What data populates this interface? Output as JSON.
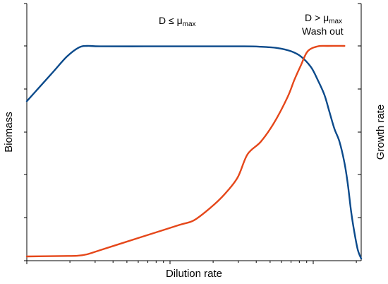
{
  "chart_data": {
    "type": "line",
    "xlabel": "Dilution rate",
    "ylabel": "Biomass",
    "y2label": "Growth rate",
    "xscale": "log",
    "x_tick_labels": "none",
    "y_tick_labels": "none",
    "grid": false,
    "legend": "none",
    "annotations": [
      {
        "text": "D ≤ μ",
        "sub": "max",
        "line2": ""
      },
      {
        "text": "D > μ",
        "sub": "max",
        "line2": "Wash out"
      }
    ],
    "series": [
      {
        "axis": "left",
        "color": "#0b4a8b",
        "x": [
          0.0,
          0.04,
          0.08,
          0.12,
          0.155,
          0.18,
          0.22,
          0.35,
          0.5,
          0.65,
          0.7,
          0.75,
          0.79,
          0.82,
          0.85,
          0.87,
          0.89,
          0.905,
          0.92,
          0.935,
          0.95,
          0.96,
          0.97,
          0.98,
          0.99,
          1.0
        ],
        "y": [
          0.74,
          0.81,
          0.88,
          0.95,
          0.992,
          1.0,
          0.998,
          0.998,
          0.998,
          0.998,
          0.996,
          0.99,
          0.975,
          0.95,
          0.9,
          0.84,
          0.77,
          0.69,
          0.61,
          0.55,
          0.45,
          0.35,
          0.22,
          0.12,
          0.04,
          0.0
        ]
      },
      {
        "axis": "right",
        "color": "#e5471a",
        "x": [
          0.0,
          0.1,
          0.15,
          0.18,
          0.22,
          0.28,
          0.34,
          0.4,
          0.46,
          0.5,
          0.55,
          0.59,
          0.63,
          0.66,
          0.7,
          0.74,
          0.78,
          0.8,
          0.82,
          0.84,
          0.87,
          0.9,
          0.95
        ],
        "y": [
          0.01,
          0.012,
          0.013,
          0.02,
          0.04,
          0.07,
          0.1,
          0.13,
          0.16,
          0.18,
          0.24,
          0.3,
          0.38,
          0.49,
          0.55,
          0.64,
          0.76,
          0.84,
          0.91,
          0.975,
          0.998,
          1.0,
          1.0
        ]
      }
    ]
  }
}
